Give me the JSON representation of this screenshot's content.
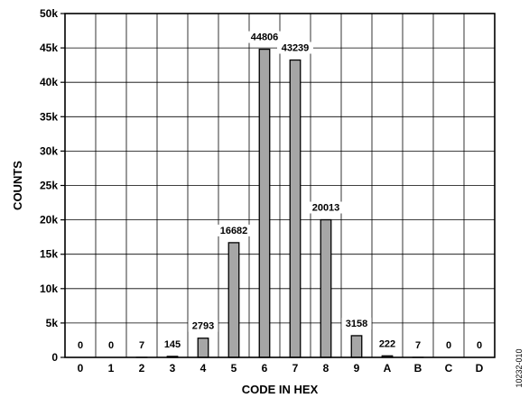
{
  "chart_data": {
    "type": "bar",
    "categories": [
      "0",
      "1",
      "2",
      "3",
      "4",
      "5",
      "6",
      "7",
      "8",
      "9",
      "A",
      "B",
      "C",
      "D"
    ],
    "values": [
      0,
      0,
      7,
      145,
      2793,
      16682,
      44806,
      43239,
      20013,
      3158,
      222,
      7,
      0,
      0
    ],
    "data_labels": [
      "0",
      "0",
      "7",
      "145",
      "2793",
      "16682",
      "44806",
      "43239",
      "20013",
      "3158",
      "222",
      "7",
      "0",
      "0"
    ],
    "xlabel": "CODE IN HEX",
    "ylabel": "COUNTS",
    "ylim": [
      0,
      50000
    ],
    "yticks": [
      0,
      5000,
      10000,
      15000,
      20000,
      25000,
      30000,
      35000,
      40000,
      45000,
      50000
    ],
    "ytick_labels": [
      "0",
      "5k",
      "10k",
      "15k",
      "20k",
      "25k",
      "30k",
      "35k",
      "40k",
      "45k",
      "50k"
    ],
    "grid": true,
    "bar_color": "#a6a6a6",
    "edge_color": "#000000"
  },
  "figure_id": "10232-010"
}
